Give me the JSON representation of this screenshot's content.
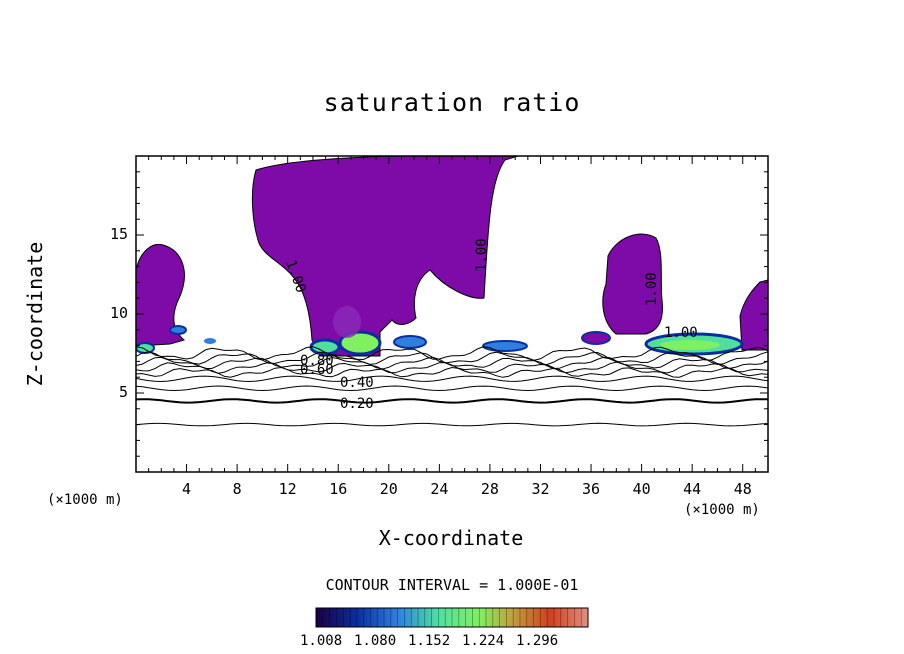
{
  "chart_data": {
    "type": "heatmap",
    "title": "saturation ratio",
    "xlabel": "X-coordinate",
    "ylabel": "Z-coordinate",
    "x_unit": "(×1000 m)",
    "xlim": [
      0,
      50
    ],
    "ylim": [
      0,
      20
    ],
    "x_ticks": [
      "4",
      "8",
      "12",
      "16",
      "20",
      "24",
      "28",
      "32",
      "36",
      "40",
      "44",
      "48"
    ],
    "y_ticks": [
      "5",
      "10",
      "15"
    ],
    "contour_interval_label": "CONTOUR INTERVAL = 1.000E-01",
    "contour_labels": [
      "0.20",
      "0.40",
      "0.60",
      "0.80",
      "1.00",
      "1.00",
      "1.00",
      "1.00"
    ],
    "contour_levels_z": [
      3.0,
      4.5,
      5.3,
      5.9,
      6.3,
      6.6,
      6.9,
      7.2,
      7.5
    ],
    "colorbar": {
      "ticks": [
        "1.008",
        "1.080",
        "1.152",
        "1.224",
        "1.296"
      ],
      "colors": [
        "#1a0040",
        "#0a2ea0",
        "#2f7fe0",
        "#4fe0a0",
        "#7ff060",
        "#c0a040",
        "#d04020",
        "#e09080"
      ]
    },
    "fill_color": "#7e0aa8"
  }
}
